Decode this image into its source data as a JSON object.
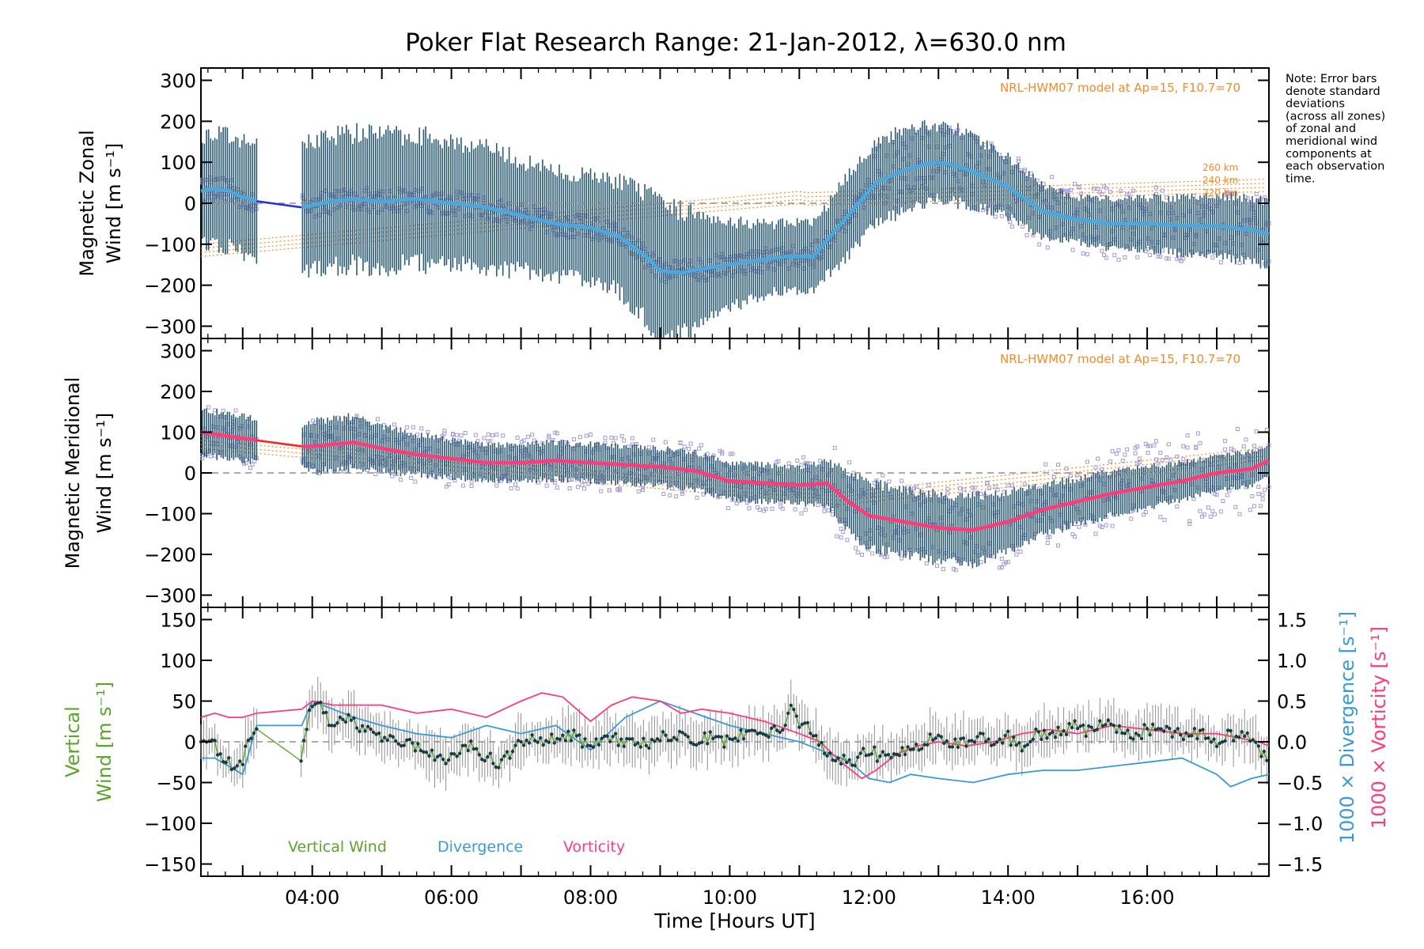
{
  "title": "Poker Flat Research Range: 21-Jan-2012, λ=630.0 nm",
  "note_lines": [
    "Note: Error bars",
    "denote standard",
    "deviations",
    "(across all zones)",
    "of zonal and",
    "meridional wind",
    "components at",
    "each observation",
    "time."
  ],
  "colors": {
    "zonal": "#4aa8e0",
    "zonal_gap": "#2030e0",
    "meridional": "#ff3c78",
    "meridional_gap": "#ff2020",
    "errorbar": "#2a5a74",
    "scatter": "#a39bd6",
    "model": "#f08c28",
    "vertical": "#5aa52a",
    "vertical_dot": "#1a3a46",
    "vertical_err": "#909090",
    "divergence": "#3a9ad6",
    "vorticity": "#ff3c78",
    "zero": "#909090"
  },
  "chart_data": [
    {
      "type": "line",
      "panel": "zonal",
      "ylabel_lines": [
        "Magnetic Zonal",
        "Wind [m s⁻¹]"
      ],
      "ylim": [
        -330,
        330
      ],
      "yticks": [
        -300,
        -200,
        -100,
        0,
        100,
        200,
        300
      ],
      "xlim": [
        2.4,
        17.75
      ],
      "model_label": "NRL-HWM07 model at Ap=15, F10.7=70",
      "altitude_labels": [
        "260 km",
        "240 km",
        "220 km"
      ],
      "gap": [
        3.2,
        3.85
      ],
      "series": [
        {
          "x": [
            2.4,
            2.6,
            2.8,
            3.0,
            3.2,
            3.85,
            4.0,
            4.3,
            4.6,
            5.0,
            5.5,
            6.0,
            6.5,
            7.0,
            7.5,
            8.0,
            8.4,
            8.8,
            9.0,
            9.3,
            9.6,
            10.0,
            10.4,
            10.8,
            11.2,
            11.5,
            11.8,
            12.1,
            12.5,
            12.8,
            13.0,
            13.3,
            13.6,
            14.0,
            14.5,
            15.0,
            15.5,
            16.0,
            16.5,
            17.0,
            17.5,
            17.75
          ],
          "values": [
            30,
            35,
            30,
            15,
            5,
            -10,
            -5,
            5,
            10,
            5,
            10,
            0,
            -10,
            -30,
            -50,
            -60,
            -80,
            -130,
            -165,
            -170,
            -160,
            -150,
            -140,
            -130,
            -130,
            -70,
            -10,
            50,
            80,
            95,
            100,
            90,
            70,
            40,
            -20,
            -40,
            -50,
            -50,
            -55,
            -55,
            -65,
            -75
          ]
        }
      ],
      "error_halfwidth": [
        150,
        150,
        150,
        150,
        150,
        170,
        180,
        180,
        180,
        180,
        175,
        170,
        160,
        150,
        140,
        140,
        150,
        170,
        180,
        170,
        150,
        120,
        100,
        90,
        90,
        100,
        110,
        110,
        110,
        110,
        100,
        100,
        90,
        80,
        70,
        60,
        70,
        70,
        75,
        80,
        90,
        90
      ]
    },
    {
      "type": "line",
      "panel": "meridional",
      "ylabel_lines": [
        "Magnetic Meridional",
        "Wind [m s⁻¹]"
      ],
      "ylim": [
        -330,
        330
      ],
      "yticks": [
        -300,
        -200,
        -100,
        0,
        100,
        200,
        300
      ],
      "xlim": [
        2.4,
        17.75
      ],
      "model_label": "NRL-HWM07 model at Ap=15, F10.7=70",
      "gap": [
        3.2,
        3.85
      ],
      "series": [
        {
          "x": [
            2.4,
            2.6,
            2.8,
            3.0,
            3.2,
            3.85,
            4.0,
            4.3,
            4.6,
            5.0,
            5.5,
            6.0,
            6.5,
            7.0,
            7.5,
            8.0,
            8.5,
            9.0,
            9.5,
            10.0,
            10.5,
            11.0,
            11.4,
            11.7,
            12.0,
            12.5,
            13.0,
            13.5,
            14.0,
            14.5,
            15.0,
            15.5,
            16.0,
            16.5,
            17.0,
            17.5,
            17.75
          ],
          "values": [
            100,
            95,
            90,
            85,
            80,
            65,
            65,
            70,
            75,
            60,
            45,
            35,
            25,
            25,
            30,
            25,
            20,
            15,
            5,
            -20,
            -25,
            -30,
            -25,
            -70,
            -105,
            -120,
            -135,
            -140,
            -120,
            -90,
            -70,
            -50,
            -35,
            -20,
            0,
            10,
            30
          ]
        }
      ],
      "error_halfwidth": [
        60,
        60,
        60,
        60,
        60,
        60,
        70,
        70,
        70,
        60,
        55,
        50,
        50,
        50,
        50,
        50,
        50,
        50,
        50,
        50,
        50,
        50,
        60,
        80,
        90,
        90,
        90,
        90,
        80,
        70,
        60,
        60,
        55,
        50,
        50,
        45,
        45
      ]
    },
    {
      "type": "line",
      "panel": "vertical",
      "ylabel_lines": [
        "Vertical",
        "Wind [m s⁻¹]"
      ],
      "ylim": [
        -165,
        165
      ],
      "yticks": [
        -150,
        -100,
        -50,
        0,
        50,
        100,
        150
      ],
      "y2label_lines": [
        "1000 × Divergence [s⁻¹]",
        "1000 × Vorticity [s⁻¹]"
      ],
      "y2lim": [
        -1.65,
        1.65
      ],
      "y2ticks": [
        -1.5,
        -1.0,
        -0.5,
        0.0,
        0.5,
        1.0,
        1.5
      ],
      "y2tick_labels": [
        "−1.5",
        "−1.0",
        "−0.5",
        "0.0",
        "0.5",
        "1.0",
        "1.5"
      ],
      "xlim": [
        2.4,
        17.75
      ],
      "xticks": [
        4,
        6,
        8,
        10,
        12,
        14,
        16
      ],
      "xtick_labels": [
        "04:00",
        "06:00",
        "08:00",
        "10:00",
        "12:00",
        "14:00",
        "16:00"
      ],
      "xlabel": "Time [Hours UT]",
      "legend": [
        "Vertical Wind",
        "Divergence",
        "Vorticity"
      ],
      "series": [
        {
          "name": "Vertical Wind",
          "x": [
            2.4,
            2.55,
            2.7,
            2.85,
            3.0,
            3.2,
            3.85,
            3.95,
            4.1,
            4.3,
            4.5,
            4.7,
            4.9,
            5.1,
            5.3,
            5.5,
            5.7,
            5.9,
            6.1,
            6.3,
            6.5,
            6.7,
            6.9,
            7.1,
            7.3,
            7.5,
            7.7,
            7.9,
            8.1,
            8.3,
            8.5,
            8.7,
            8.9,
            9.1,
            9.3,
            9.5,
            9.7,
            9.9,
            10.1,
            10.3,
            10.5,
            10.7,
            10.9,
            11.0,
            11.2,
            11.4,
            11.6,
            11.8,
            12.0,
            12.2,
            12.4,
            12.6,
            12.8,
            13.0,
            13.2,
            13.4,
            13.6,
            13.8,
            14.0,
            14.2,
            14.4,
            14.6,
            14.8,
            15.0,
            15.2,
            15.4,
            15.6,
            15.8,
            16.0,
            16.2,
            16.4,
            16.6,
            16.8,
            17.0,
            17.2,
            17.4,
            17.6,
            17.75
          ],
          "values": [
            5,
            0,
            -15,
            -30,
            -20,
            15,
            -25,
            40,
            45,
            20,
            30,
            15,
            10,
            5,
            0,
            -5,
            -15,
            -20,
            -10,
            0,
            -20,
            -25,
            -10,
            5,
            0,
            5,
            10,
            0,
            -5,
            5,
            0,
            -5,
            0,
            10,
            5,
            0,
            5,
            0,
            5,
            10,
            15,
            10,
            40,
            25,
            10,
            -15,
            -20,
            -25,
            -10,
            -20,
            -15,
            -10,
            0,
            5,
            -5,
            0,
            5,
            0,
            5,
            -5,
            10,
            5,
            15,
            20,
            10,
            25,
            15,
            5,
            15,
            20,
            10,
            5,
            15,
            0,
            10,
            5,
            -5,
            -25
          ]
        },
        {
          "name": "Divergence",
          "x": [
            2.4,
            2.6,
            2.8,
            3.0,
            3.2,
            3.85,
            4.0,
            4.3,
            4.6,
            5.0,
            5.5,
            6.0,
            6.5,
            7.0,
            7.5,
            8.0,
            8.5,
            9.0,
            9.5,
            10.0,
            10.5,
            11.0,
            11.3,
            11.6,
            11.8,
            12.0,
            12.3,
            12.6,
            13.0,
            13.5,
            14.0,
            14.5,
            15.0,
            15.5,
            16.0,
            16.5,
            17.0,
            17.2,
            17.5,
            17.75
          ],
          "values": [
            -0.2,
            -0.2,
            -0.3,
            -0.4,
            0.2,
            0.2,
            0.5,
            0.4,
            0.3,
            0.2,
            0.1,
            0.05,
            0.2,
            0.1,
            0.2,
            -0.1,
            0.3,
            0.5,
            0.35,
            0.2,
            0.1,
            0.0,
            -0.1,
            -0.2,
            -0.3,
            -0.45,
            -0.5,
            -0.4,
            -0.45,
            -0.5,
            -0.4,
            -0.35,
            -0.35,
            -0.3,
            -0.25,
            -0.2,
            -0.4,
            -0.55,
            -0.45,
            -0.4
          ]
        },
        {
          "name": "Vorticity",
          "x": [
            2.4,
            2.6,
            2.8,
            3.0,
            3.2,
            3.85,
            4.0,
            4.3,
            4.6,
            5.0,
            5.5,
            6.0,
            6.5,
            7.0,
            7.3,
            7.6,
            8.0,
            8.3,
            8.6,
            9.0,
            9.3,
            9.6,
            10.0,
            10.5,
            11.0,
            11.3,
            11.6,
            11.9,
            12.1,
            12.4,
            12.7,
            13.0,
            13.4,
            13.8,
            14.2,
            14.6,
            15.0,
            15.5,
            16.0,
            16.5,
            17.0,
            17.3,
            17.6,
            17.75
          ],
          "values": [
            0.3,
            0.35,
            0.3,
            0.3,
            0.35,
            0.4,
            0.5,
            0.45,
            0.45,
            0.45,
            0.35,
            0.4,
            0.3,
            0.5,
            0.6,
            0.55,
            0.25,
            0.45,
            0.55,
            0.5,
            0.35,
            0.4,
            0.35,
            0.25,
            0.1,
            0.0,
            -0.25,
            -0.45,
            -0.35,
            -0.15,
            -0.05,
            0.0,
            -0.05,
            0.0,
            0.1,
            0.15,
            0.1,
            0.2,
            0.15,
            0.1,
            0.1,
            0.05,
            0.0,
            -0.05
          ]
        }
      ]
    }
  ]
}
